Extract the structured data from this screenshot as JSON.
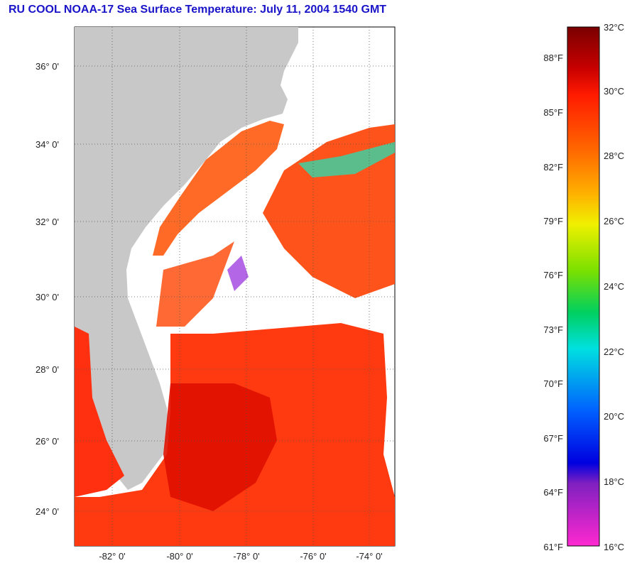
{
  "title": "RU COOL  NOAA-17  Sea Surface Temperature:  July 11, 2004 1540 GMT",
  "map": {
    "lat_labels": [
      {
        "lat": 36,
        "label": "36° 0'"
      },
      {
        "lat": 34,
        "label": "34° 0'"
      },
      {
        "lat": 32,
        "label": "32° 0'"
      },
      {
        "lat": 30,
        "label": "30° 0'"
      },
      {
        "lat": 28,
        "label": "28° 0'"
      },
      {
        "lat": 26,
        "label": "26° 0'"
      },
      {
        "lat": 24,
        "label": "24° 0'"
      }
    ],
    "lon_labels": [
      {
        "lon": -82,
        "label": "-82° 0'"
      },
      {
        "lon": -80,
        "label": "-80° 0'"
      },
      {
        "lon": -78,
        "label": "-78° 0'"
      },
      {
        "lon": -76,
        "label": "-76° 0'"
      },
      {
        "lon": -74,
        "label": "-74° 0'"
      }
    ],
    "land_color": "#c8c8c8",
    "cloud_color": "#ffffff"
  },
  "colorbar": {
    "celsius_labels": [
      "32°C",
      "30°C",
      "28°C",
      "26°C",
      "24°C",
      "22°C",
      "20°C",
      "18°C",
      "16°C"
    ],
    "fahrenheit_labels": [
      "88°F",
      "85°F",
      "82°F",
      "79°F",
      "76°F",
      "73°F",
      "70°F",
      "67°F",
      "64°F",
      "61°F"
    ]
  }
}
